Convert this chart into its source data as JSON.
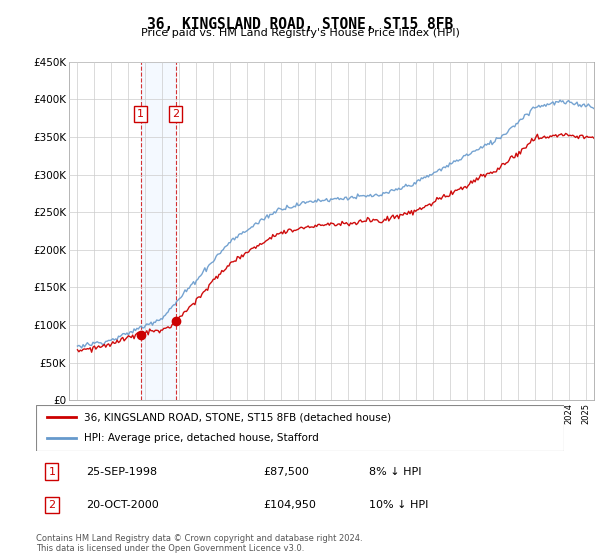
{
  "title": "36, KINGSLAND ROAD, STONE, ST15 8FB",
  "subtitle": "Price paid vs. HM Land Registry's House Price Index (HPI)",
  "ylabel_ticks": [
    "£0",
    "£50K",
    "£100K",
    "£150K",
    "£200K",
    "£250K",
    "£300K",
    "£350K",
    "£400K",
    "£450K"
  ],
  "ytick_values": [
    0,
    50000,
    100000,
    150000,
    200000,
    250000,
    300000,
    350000,
    400000,
    450000
  ],
  "ylim": [
    0,
    450000
  ],
  "xlim_start": 1994.5,
  "xlim_end": 2025.5,
  "transaction1": {
    "date_num": 1998.73,
    "price": 87500,
    "label": "1",
    "row": "25-SEP-1998",
    "amount": "£87,500",
    "pct": "8% ↓ HPI"
  },
  "transaction2": {
    "date_num": 2000.79,
    "price": 104950,
    "label": "2",
    "row": "20-OCT-2000",
    "amount": "£104,950",
    "pct": "10% ↓ HPI"
  },
  "legend_label_red": "36, KINGSLAND ROAD, STONE, ST15 8FB (detached house)",
  "legend_label_blue": "HPI: Average price, detached house, Stafford",
  "footer": "Contains HM Land Registry data © Crown copyright and database right 2024.\nThis data is licensed under the Open Government Licence v3.0.",
  "red_color": "#cc0000",
  "blue_color": "#6699cc",
  "vline_color": "#cc0000",
  "highlight_color": "#ddeeff",
  "box_color": "#cc0000",
  "grid_color": "#cccccc",
  "bg_color": "#ffffff"
}
